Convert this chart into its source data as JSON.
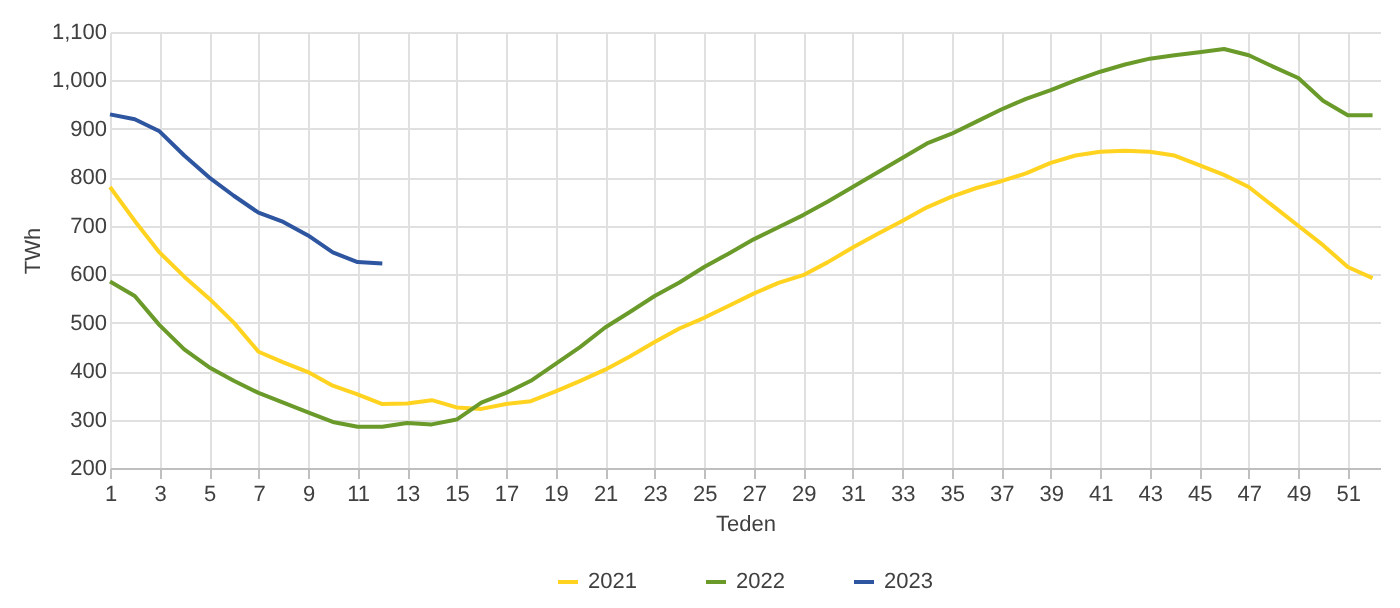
{
  "chart_data": {
    "type": "line",
    "xlabel": "Teden",
    "ylabel": "TWh",
    "x": [
      1,
      2,
      3,
      4,
      5,
      6,
      7,
      8,
      9,
      10,
      11,
      12,
      13,
      14,
      15,
      16,
      17,
      18,
      19,
      20,
      21,
      22,
      23,
      24,
      25,
      26,
      27,
      28,
      29,
      30,
      31,
      32,
      33,
      34,
      35,
      36,
      37,
      38,
      39,
      40,
      41,
      42,
      43,
      44,
      45,
      46,
      47,
      48,
      49,
      50,
      51,
      52
    ],
    "series": [
      {
        "name": "2021",
        "color": "#ffd320",
        "values": [
          780,
          710,
          645,
          595,
          550,
          500,
          440,
          418,
          398,
          370,
          352,
          332,
          333,
          340,
          325,
          322,
          332,
          338,
          358,
          380,
          403,
          430,
          460,
          488,
          510,
          535,
          560,
          582,
          598,
          625,
          655,
          683,
          710,
          738,
          760,
          778,
          792,
          808,
          830,
          845,
          853,
          855,
          853,
          845,
          825,
          805,
          780,
          740,
          700,
          660,
          615,
          592
        ]
      },
      {
        "name": "2022",
        "color": "#6a9a2a",
        "values": [
          585,
          555,
          495,
          445,
          408,
          380,
          355,
          335,
          315,
          295,
          285,
          285,
          293,
          290,
          300,
          335,
          355,
          380,
          415,
          450,
          490,
          522,
          555,
          583,
          615,
          643,
          672,
          697,
          722,
          750,
          780,
          810,
          840,
          870,
          890,
          915,
          940,
          962,
          980,
          1000,
          1018,
          1033,
          1045,
          1052,
          1058,
          1065,
          1052,
          1028,
          1005,
          958,
          928,
          928
        ]
      },
      {
        "name": "2023",
        "color": "#2e55a0",
        "values": [
          930,
          920,
          895,
          845,
          800,
          762,
          727,
          708,
          680,
          645,
          625,
          622,
          null,
          null,
          null,
          null,
          null,
          null,
          null,
          null,
          null,
          null,
          null,
          null,
          null,
          null,
          null,
          null,
          null,
          null,
          null,
          null,
          null,
          null,
          null,
          null,
          null,
          null,
          null,
          null,
          null,
          null,
          null,
          null,
          null,
          null,
          null,
          null,
          null,
          null,
          null,
          null
        ]
      }
    ],
    "xlim": [
      1,
      52.3
    ],
    "xticks": [
      1,
      3,
      5,
      7,
      9,
      11,
      13,
      15,
      17,
      19,
      21,
      23,
      25,
      27,
      29,
      31,
      33,
      35,
      37,
      39,
      41,
      43,
      45,
      47,
      49,
      51
    ],
    "ylim": [
      200,
      1100
    ],
    "yticks": [
      200,
      300,
      400,
      500,
      600,
      700,
      800,
      900,
      {
        "value": 1000,
        "label": "1,000"
      },
      {
        "value": 1100,
        "label": "1,100"
      }
    ],
    "grid": true,
    "legend": "bottom",
    "marker": "none",
    "line_style": "solid"
  }
}
